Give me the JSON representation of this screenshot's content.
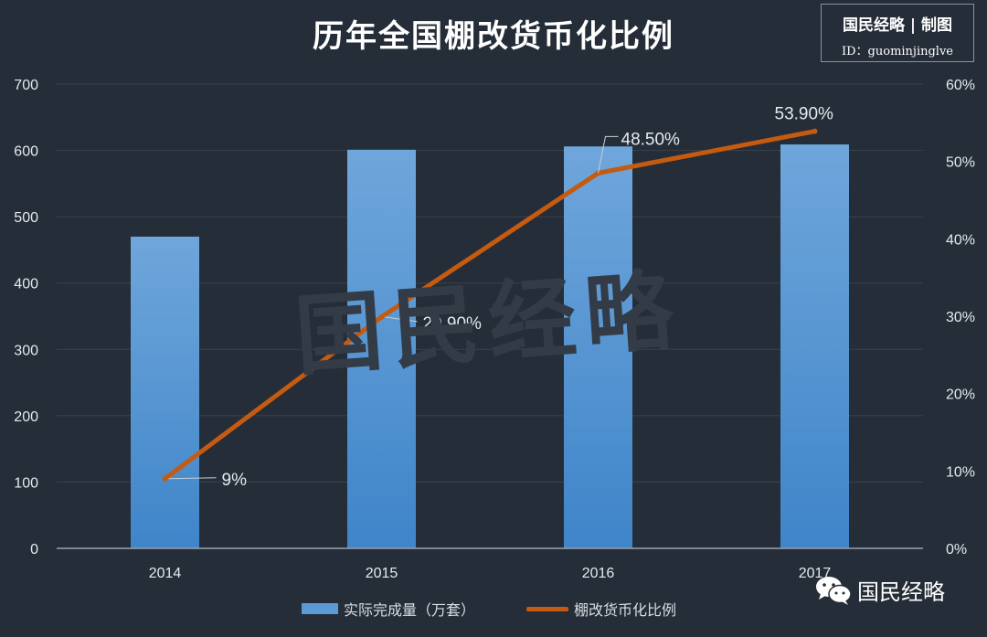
{
  "chart_data": {
    "type": "bar+line",
    "title": "历年全国棚改货币化比例",
    "categories": [
      "2014",
      "2015",
      "2016",
      "2017"
    ],
    "series": [
      {
        "name": "实际完成量（万套）",
        "type": "bar",
        "axis": "left",
        "values": [
          470,
          601,
          606,
          609
        ]
      },
      {
        "name": "棚改货币化比例",
        "type": "line",
        "axis": "right",
        "values": [
          9.0,
          29.9,
          48.5,
          53.9
        ],
        "labels": [
          "9%",
          "29.90%",
          "48.50%",
          "53.90%"
        ]
      }
    ],
    "y_left": {
      "min": 0,
      "max": 700,
      "ticks": [
        "0",
        "100",
        "200",
        "300",
        "400",
        "500",
        "600",
        "700"
      ]
    },
    "y_right": {
      "min": 0,
      "max": 60,
      "ticks": [
        "0%",
        "10%",
        "20%",
        "30%",
        "40%",
        "50%",
        "60%"
      ]
    },
    "grid": true,
    "legend_position": "bottom"
  },
  "brand": {
    "title": "国民经略 | 制图",
    "id_text": "ID：guominjinglve",
    "watermark": "国民经略",
    "wechat_name": "国民经略"
  },
  "colors": {
    "bar": "#5b9bd5",
    "line": "#c55a11",
    "background": "#252d38",
    "grid": "#3a424d"
  },
  "icons": {
    "wechat": "wechat-icon"
  }
}
